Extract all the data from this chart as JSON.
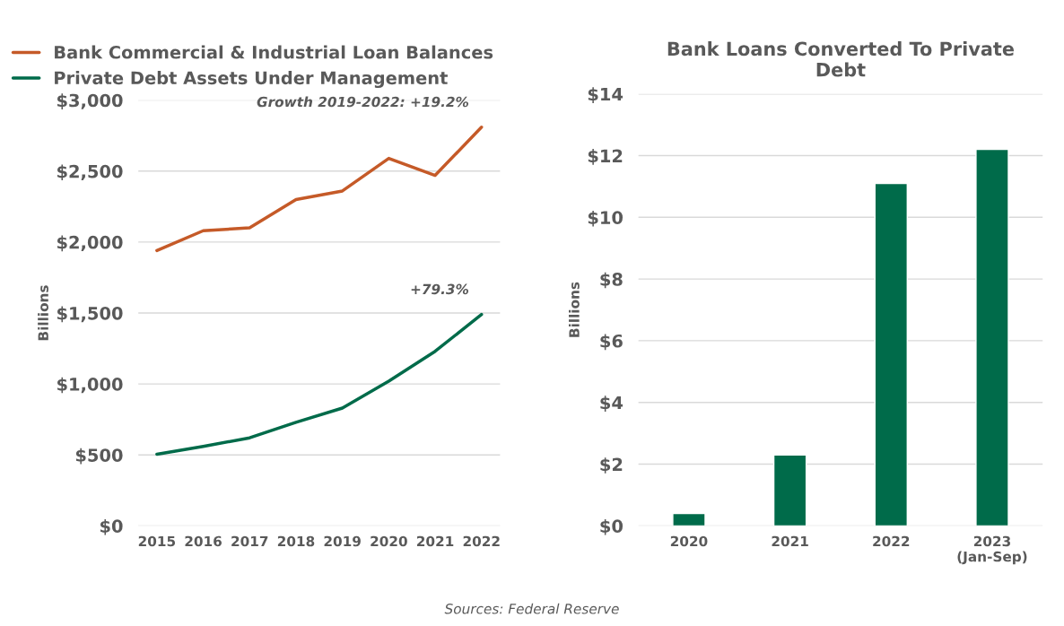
{
  "chart_data": [
    {
      "type": "line",
      "categories": [
        "2015",
        "2016",
        "2017",
        "2018",
        "2019",
        "2020",
        "2021",
        "2022"
      ],
      "ylabel": "Billions",
      "series": [
        {
          "name": "Bank Commercial & Industrial Loan Balances",
          "color": "#c55a28",
          "values": [
            1940,
            2080,
            2100,
            2300,
            2360,
            2590,
            2470,
            2810
          ]
        },
        {
          "name": "Private Debt Assets Under Management",
          "color": "#006b4a",
          "values": [
            505,
            560,
            620,
            730,
            830,
            1020,
            1230,
            1490
          ]
        }
      ],
      "ylim": [
        0,
        3000
      ],
      "yticks": [
        {
          "value": 0,
          "label": "$0"
        },
        {
          "value": 500,
          "label": "$500"
        },
        {
          "value": 1000,
          "label": "$1,000"
        },
        {
          "value": 1500,
          "label": "$1,500"
        },
        {
          "value": 2000,
          "label": "$2,000"
        },
        {
          "value": 2500,
          "label": "$2,500"
        },
        {
          "value": 3000,
          "label": "$3,000"
        }
      ],
      "grid": "y",
      "legend": "top left",
      "marker": "none",
      "line_style": "solid",
      "annotations": [
        {
          "text": "Growth 2019-2022: +19.2%",
          "x": "2022",
          "y": 2810
        },
        {
          "text": "+79.3%",
          "x": "2022",
          "y": 1490
        },
        "Sources: Federal Reserve"
      ]
    },
    {
      "type": "bar",
      "title": "Bank Loans Converted To Private\nDebt",
      "categories": [
        "2020",
        "2021",
        "2022",
        "2023\n(Jan-Sep)"
      ],
      "ylabel": "Billions",
      "values": [
        0.4,
        2.3,
        11.1,
        12.2
      ],
      "color": "#006b4a",
      "ylim": [
        0,
        14
      ],
      "yticks": [
        {
          "value": 0,
          "label": "$0"
        },
        {
          "value": 2,
          "label": "$2"
        },
        {
          "value": 4,
          "label": "$4"
        },
        {
          "value": 6,
          "label": "$6"
        },
        {
          "value": 8,
          "label": "$8"
        },
        {
          "value": 10,
          "label": "$10"
        },
        {
          "value": 12,
          "label": "$12"
        },
        {
          "value": 14,
          "label": "$14"
        }
      ],
      "grid": "y"
    }
  ]
}
